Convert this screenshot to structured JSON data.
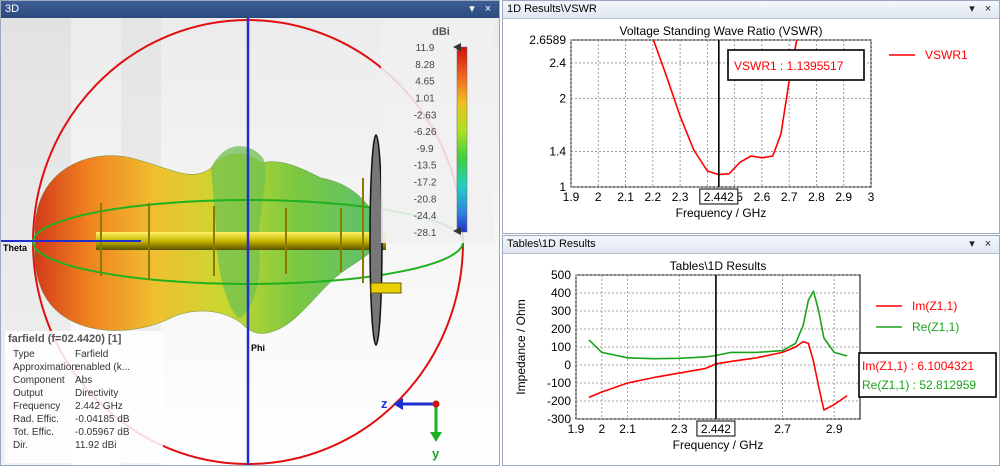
{
  "left_pane": {
    "title": "3D",
    "controls": [
      "▾",
      "×"
    ],
    "theta_label": "Theta",
    "phi_label": "Phi",
    "axis_z": "z",
    "axis_y": "y",
    "colorscale": {
      "unit": "dBi",
      "ticks": [
        "11.9",
        "8.28",
        "4.65",
        "1.01",
        "-2.63",
        "-6.26",
        "-9.9",
        "-13.5",
        "-17.2",
        "-20.8",
        "-24.4",
        "-28.1"
      ]
    },
    "info": {
      "header": "farfield (f=02.4420) [1]",
      "rows": [
        {
          "k": "Type",
          "v": "Farfield"
        },
        {
          "k": "Approximation",
          "v": "enabled (k..."
        },
        {
          "k": "Component",
          "v": "Abs"
        },
        {
          "k": "Output",
          "v": "Directivity"
        },
        {
          "k": "Frequency",
          "v": "2.442 GHz"
        },
        {
          "k": "Rad. Effic.",
          "v": "-0.04185 dB"
        },
        {
          "k": "Tot. Effic.",
          "v": "-0.05967 dB"
        },
        {
          "k": "Dir.",
          "v": "11.92 dBi"
        }
      ]
    }
  },
  "vswr_pane": {
    "title": "1D Results\\VSWR",
    "controls": [
      "▾",
      "×"
    ],
    "chart_data": {
      "type": "line",
      "title": "Voltage Standing Wave Ratio (VSWR)",
      "xlabel": "Frequency / GHz",
      "ylabel": "",
      "xlim": [
        1.9,
        3
      ],
      "ylim": [
        1,
        2.6589
      ],
      "x_ticks": [
        "1.9",
        "2",
        "2.1",
        "2.2",
        "2.3",
        "2.4",
        "2.5",
        "2.6",
        "2.7",
        "2.8",
        "2.9",
        "3"
      ],
      "y_ticks": [
        "2.6589",
        "2.4",
        "2",
        "1.4",
        "1"
      ],
      "grid": true,
      "legend": "right",
      "marker": {
        "x": 2.442,
        "label": "2.442"
      },
      "readout": "VSWR1 : 1.1395517",
      "series": [
        {
          "name": "VSWR1",
          "color": "#ff0000",
          "x": [
            2.2,
            2.25,
            2.3,
            2.35,
            2.4,
            2.442,
            2.48,
            2.52,
            2.56,
            2.6,
            2.64,
            2.67,
            2.7,
            2.73
          ],
          "y": [
            2.68,
            2.25,
            1.8,
            1.42,
            1.18,
            1.14,
            1.15,
            1.28,
            1.35,
            1.33,
            1.35,
            1.6,
            2.2,
            2.7
          ]
        }
      ]
    }
  },
  "tables_pane": {
    "title": "Tables\\1D Results",
    "controls": [
      "▾",
      "×"
    ],
    "chart_data": {
      "type": "line",
      "title": "Tables\\1D Results",
      "xlabel": "Frequency / GHz",
      "ylabel": "Impedance / Ohm",
      "xlim": [
        1.9,
        3.0
      ],
      "ylim": [
        -300,
        500
      ],
      "x_ticks": [
        "1.9",
        "2",
        "2.1",
        "2.3",
        "2.7",
        "2.9"
      ],
      "x_tick_values": [
        1.9,
        2.0,
        2.1,
        2.3,
        2.7,
        2.9
      ],
      "y_ticks": [
        "500",
        "400",
        "300",
        "200",
        "100",
        "0",
        "-100",
        "-200",
        "-300"
      ],
      "grid": true,
      "legend": "right",
      "marker": {
        "x": 2.442,
        "label": "2.442"
      },
      "readouts": [
        {
          "text": "Im(Z1,1) : 6.1004321",
          "color": "#ff0000"
        },
        {
          "text": "Re(Z1,1) : 52.812959",
          "color": "#1aa31a"
        }
      ],
      "series": [
        {
          "name": "Im(Z1,1)",
          "color": "#ff0000",
          "x": [
            1.95,
            2.0,
            2.1,
            2.2,
            2.3,
            2.4,
            2.442,
            2.5,
            2.6,
            2.7,
            2.75,
            2.78,
            2.8,
            2.82,
            2.84,
            2.86,
            2.9,
            2.95
          ],
          "y": [
            -180,
            -150,
            -100,
            -70,
            -45,
            -20,
            6,
            20,
            40,
            70,
            100,
            130,
            120,
            20,
            -120,
            -250,
            -220,
            -170
          ]
        },
        {
          "name": "Re(Z1,1)",
          "color": "#1aa31a",
          "x": [
            1.95,
            2.0,
            2.1,
            2.2,
            2.3,
            2.4,
            2.442,
            2.5,
            2.6,
            2.7,
            2.75,
            2.78,
            2.8,
            2.82,
            2.84,
            2.86,
            2.9,
            2.95
          ],
          "y": [
            140,
            70,
            40,
            35,
            37,
            45,
            53,
            70,
            70,
            80,
            120,
            220,
            360,
            410,
            300,
            150,
            70,
            50
          ]
        }
      ]
    }
  },
  "colors": {
    "curve_red": "#ff0000",
    "curve_green": "#1aa31a",
    "title_blue": "#2b4a7d"
  }
}
